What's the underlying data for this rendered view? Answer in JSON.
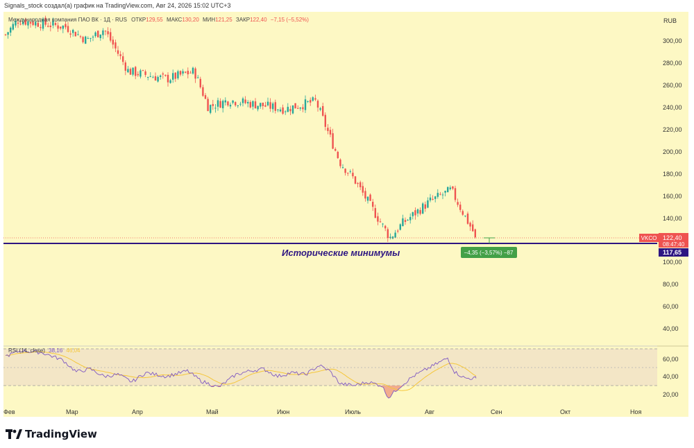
{
  "header": {
    "credit": "Signals_stock создал(а) график на TradingView.com, Авг 24, 2026 15:02 UTC+3"
  },
  "legend": {
    "instrument": "Международная компания ПАО ВК · 1Д · RUS",
    "open_label": "ОТКР",
    "open": "129,55",
    "high_label": "МАКС",
    "high": "130,20",
    "low_label": "МИН",
    "low": "121,25",
    "close_label": "ЗАКР",
    "close": "122,40",
    "change": "−7,15 (−5,52%)"
  },
  "price_axis": {
    "currency": "RUB",
    "ticks": [
      "300,00",
      "280,00",
      "260,00",
      "240,00",
      "220,00",
      "200,00",
      "180,00",
      "160,00",
      "140,00",
      "100,00",
      "80,00",
      "60,00",
      "40,00"
    ]
  },
  "last_price": {
    "ticker": "VKCO",
    "value": "122,40",
    "countdown": "08:47:40"
  },
  "level": {
    "value": "117,65",
    "label": "Исторические минимумы"
  },
  "measure": {
    "text": "−4,35 (−3,57%) −87"
  },
  "rsi": {
    "label": "RSI (14, close)",
    "value": "38,16",
    "ma_value": "46,04",
    "ticks": [
      "60,00",
      "40,00",
      "20,00"
    ]
  },
  "time_axis": {
    "labels": [
      "Фев",
      "Мар",
      "Апр",
      "Май",
      "Июн",
      "Июль",
      "Авг",
      "Сен",
      "Окт",
      "Ноя"
    ]
  },
  "brand": {
    "name": "TradingView"
  },
  "colors": {
    "background": "#fdf8c4",
    "up": "#26a69a",
    "down": "#ef5350",
    "level_line": "#2d1582",
    "rsi_line": "#7e57c2",
    "rsi_ma": "#f5c73a",
    "measure": "#43a047"
  },
  "chart_data": {
    "type": "candlestick",
    "interval": "1D",
    "ylim": [
      20,
      320
    ],
    "key_points": [
      {
        "date": "Фев",
        "price": 305
      },
      {
        "date": "Фев",
        "price": 318
      },
      {
        "date": "Мар",
        "price": 312
      },
      {
        "date": "Мар",
        "price": 300
      },
      {
        "date": "Мар",
        "price": 310
      },
      {
        "date": "Апр",
        "price": 272
      },
      {
        "date": "Апр",
        "price": 265
      },
      {
        "date": "Май",
        "price": 272
      },
      {
        "date": "Май",
        "price": 240
      },
      {
        "date": "Июн",
        "price": 246
      },
      {
        "date": "Июн",
        "price": 238
      },
      {
        "date": "Июн",
        "price": 245
      },
      {
        "date": "Июль",
        "price": 190
      },
      {
        "date": "Июль",
        "price": 175
      },
      {
        "date": "Июль",
        "price": 122
      },
      {
        "date": "Июль",
        "price": 135
      },
      {
        "date": "Авг",
        "price": 155
      },
      {
        "date": "Авг",
        "price": 165
      },
      {
        "date": "Авг",
        "price": 122.4
      }
    ],
    "last": {
      "open": 129.55,
      "high": 130.2,
      "low": 121.25,
      "close": 122.4
    },
    "support_level": 117.65,
    "rsi": {
      "period": 14,
      "last": 38.16,
      "ma": 46.04,
      "ylim": [
        10,
        75
      ],
      "upper": 70,
      "lower": 30
    }
  }
}
